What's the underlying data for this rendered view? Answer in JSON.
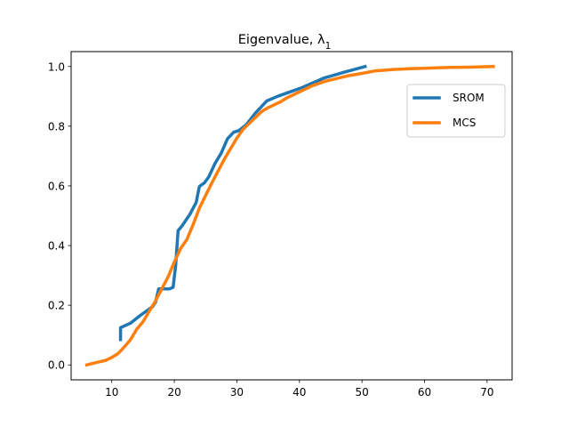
{
  "chart_data": {
    "type": "line",
    "title": "Eigenvalue, λ",
    "title_subscript": "1",
    "xlabel": "",
    "ylabel": "",
    "xlim": [
      3.5,
      74
    ],
    "ylim": [
      -0.05,
      1.05
    ],
    "xticks": [
      10,
      20,
      30,
      40,
      50,
      60,
      70
    ],
    "yticks": [
      0.0,
      0.2,
      0.4,
      0.6,
      0.8,
      1.0
    ],
    "xtick_labels": [
      "10",
      "20",
      "30",
      "40",
      "50",
      "60",
      "70"
    ],
    "ytick_labels": [
      "0.0",
      "0.2",
      "0.4",
      "0.6",
      "0.8",
      "1.0"
    ],
    "grid": false,
    "legend_position": "upper-right",
    "series": [
      {
        "name": "SROM",
        "color": "#1f77b4",
        "x": [
          11.4,
          11.4,
          13.0,
          14.5,
          16.5,
          17.0,
          17.5,
          19.2,
          19.8,
          20.2,
          20.6,
          21.2,
          22.5,
          23.5,
          24.0,
          24.8,
          25.5,
          26.5,
          27.5,
          28.5,
          29.5,
          30.3,
          31.5,
          33.0,
          34.8,
          36.5,
          38.5,
          40.5,
          44.0,
          47.0,
          50.5
        ],
        "y": [
          0.085,
          0.125,
          0.14,
          0.165,
          0.195,
          0.21,
          0.255,
          0.255,
          0.26,
          0.33,
          0.45,
          0.465,
          0.505,
          0.545,
          0.598,
          0.61,
          0.63,
          0.675,
          0.71,
          0.758,
          0.78,
          0.785,
          0.805,
          0.845,
          0.885,
          0.9,
          0.915,
          0.93,
          0.962,
          0.98,
          1.0
        ]
      },
      {
        "name": "MCS",
        "color": "#ff7f0e",
        "x": [
          6.0,
          7.5,
          9.0,
          10.0,
          11.0,
          12.0,
          13.0,
          14.0,
          15.0,
          16.0,
          17.0,
          18.0,
          19.0,
          20.0,
          21.0,
          22.0,
          23.0,
          24.0,
          25.0,
          26.0,
          27.0,
          28.0,
          29.0,
          30.0,
          31.0,
          32.0,
          33.0,
          34.0,
          35.0,
          36.0,
          37.0,
          38.0,
          40.0,
          42.0,
          44.0,
          46.0,
          48.0,
          50.0,
          52.0,
          55.0,
          58.0,
          61.0,
          64.0,
          67.0,
          71.0
        ],
        "y": [
          0.0,
          0.008,
          0.015,
          0.025,
          0.038,
          0.06,
          0.085,
          0.12,
          0.145,
          0.18,
          0.215,
          0.255,
          0.295,
          0.345,
          0.39,
          0.42,
          0.47,
          0.525,
          0.568,
          0.61,
          0.65,
          0.69,
          0.725,
          0.76,
          0.79,
          0.81,
          0.83,
          0.85,
          0.862,
          0.872,
          0.882,
          0.895,
          0.915,
          0.935,
          0.95,
          0.96,
          0.97,
          0.977,
          0.985,
          0.99,
          0.993,
          0.995,
          0.997,
          0.998,
          1.0
        ]
      }
    ]
  }
}
